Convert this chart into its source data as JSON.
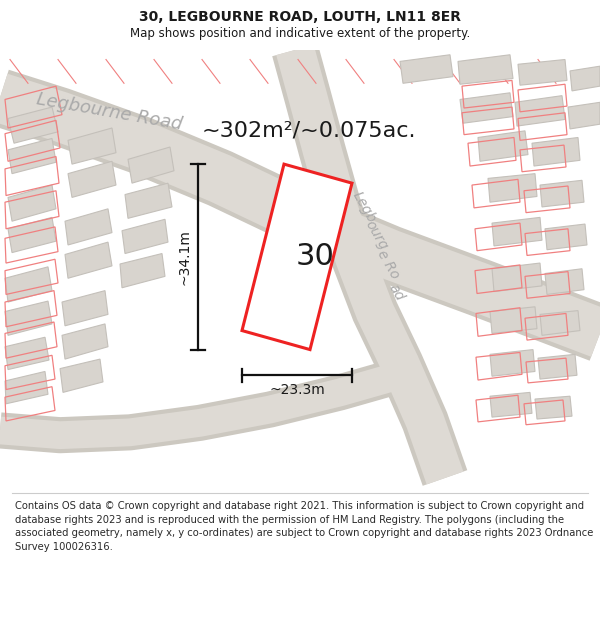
{
  "title": "30, LEGBOURNE ROAD, LOUTH, LN11 8ER",
  "subtitle": "Map shows position and indicative extent of the property.",
  "footer": "Contains OS data © Crown copyright and database right 2021. This information is subject to Crown copyright and database rights 2023 and is reproduced with the permission of HM Land Registry. The polygons (including the associated geometry, namely x, y co-ordinates) are subject to Crown copyright and database rights 2023 Ordnance Survey 100026316.",
  "area_label": "~302m²/~0.075ac.",
  "number_label": "30",
  "dim_width_label": "~23.3m",
  "dim_height_label": "~34.1m",
  "map_bg": "#f2ede8",
  "road_fill": "#dedad4",
  "road_edge": "#ccc8c0",
  "building_fill": "#d8d4ce",
  "building_edge": "#c4c0ba",
  "red_color": "#ee2222",
  "red_light": "#f08080",
  "dim_color": "#111111",
  "road_label_color": "#aaaaaa",
  "text_color": "#1a1a1a",
  "title_fontsize": 10,
  "subtitle_fontsize": 8.5,
  "footer_fontsize": 7.2,
  "area_fontsize": 16,
  "number_fontsize": 22,
  "dim_fontsize": 10,
  "road_label_fontsize": 13
}
